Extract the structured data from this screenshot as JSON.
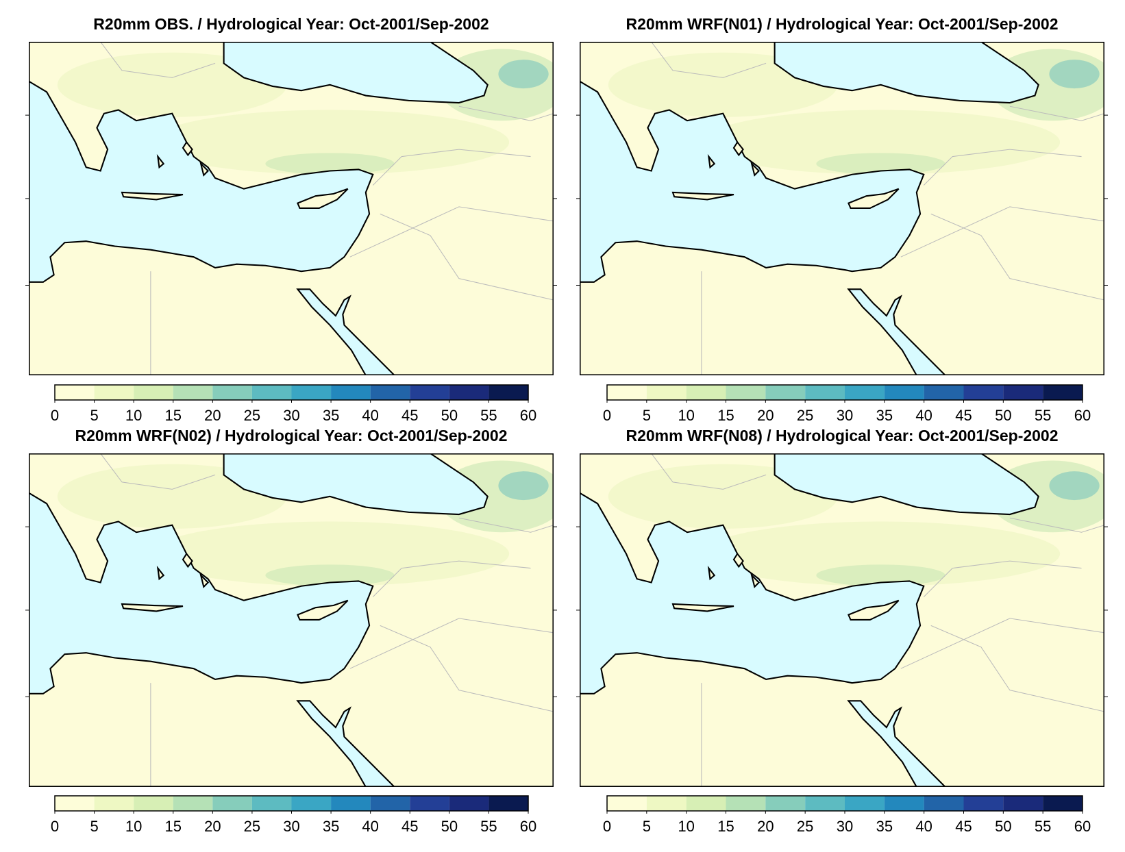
{
  "panels": [
    {
      "title": "R20mm OBS. / Hydrological Year: Oct-2001/Sep-2002",
      "colorbar": {
        "lim": [
          0,
          60
        ],
        "ticks": [
          0,
          5,
          10,
          15,
          20,
          25,
          30,
          35,
          40,
          45,
          50,
          55,
          60
        ],
        "colors": [
          "#fdfdd9",
          "#eef8c3",
          "#d7efb5",
          "#b5e1b6",
          "#86cdbb",
          "#5dbbc1",
          "#3aa6c4",
          "#2388bd",
          "#2264a8",
          "#233f96",
          "#1a2a7a",
          "#0a1a50"
        ]
      }
    },
    {
      "title": "R20mm WRF(N01) / Hydrological Year: Oct-2001/Sep-2002",
      "colorbar": {
        "lim": [
          0,
          60
        ],
        "ticks": [
          0,
          5,
          10,
          15,
          20,
          25,
          30,
          35,
          40,
          45,
          50,
          55,
          60
        ],
        "colors": [
          "#fdfdd9",
          "#eef8c3",
          "#d7efb5",
          "#b5e1b6",
          "#86cdbb",
          "#5dbbc1",
          "#3aa6c4",
          "#2388bd",
          "#2264a8",
          "#233f96",
          "#1a2a7a",
          "#0a1a50"
        ]
      }
    },
    {
      "title": "R20mm WRF(N02) / Hydrological Year: Oct-2001/Sep-2002",
      "colorbar": {
        "lim": [
          0,
          60
        ],
        "ticks": [
          0,
          5,
          10,
          15,
          20,
          25,
          30,
          35,
          40,
          45,
          50,
          55,
          60
        ],
        "colors": [
          "#fdfdd9",
          "#eef8c3",
          "#d7efb5",
          "#b5e1b6",
          "#86cdbb",
          "#5dbbc1",
          "#3aa6c4",
          "#2388bd",
          "#2264a8",
          "#233f96",
          "#1a2a7a",
          "#0a1a50"
        ]
      }
    },
    {
      "title": "R20mm WRF(N08) / Hydrological Year: Oct-2001/Sep-2002",
      "colorbar": {
        "lim": [
          0,
          60
        ],
        "ticks": [
          0,
          5,
          10,
          15,
          20,
          25,
          30,
          35,
          40,
          45,
          50,
          55,
          60
        ],
        "colors": [
          "#fdfdd9",
          "#eef8c3",
          "#d7efb5",
          "#b5e1b6",
          "#86cdbb",
          "#5dbbc1",
          "#3aa6c4",
          "#2388bd",
          "#2264a8",
          "#233f96",
          "#1a2a7a",
          "#0a1a50"
        ]
      }
    }
  ]
}
